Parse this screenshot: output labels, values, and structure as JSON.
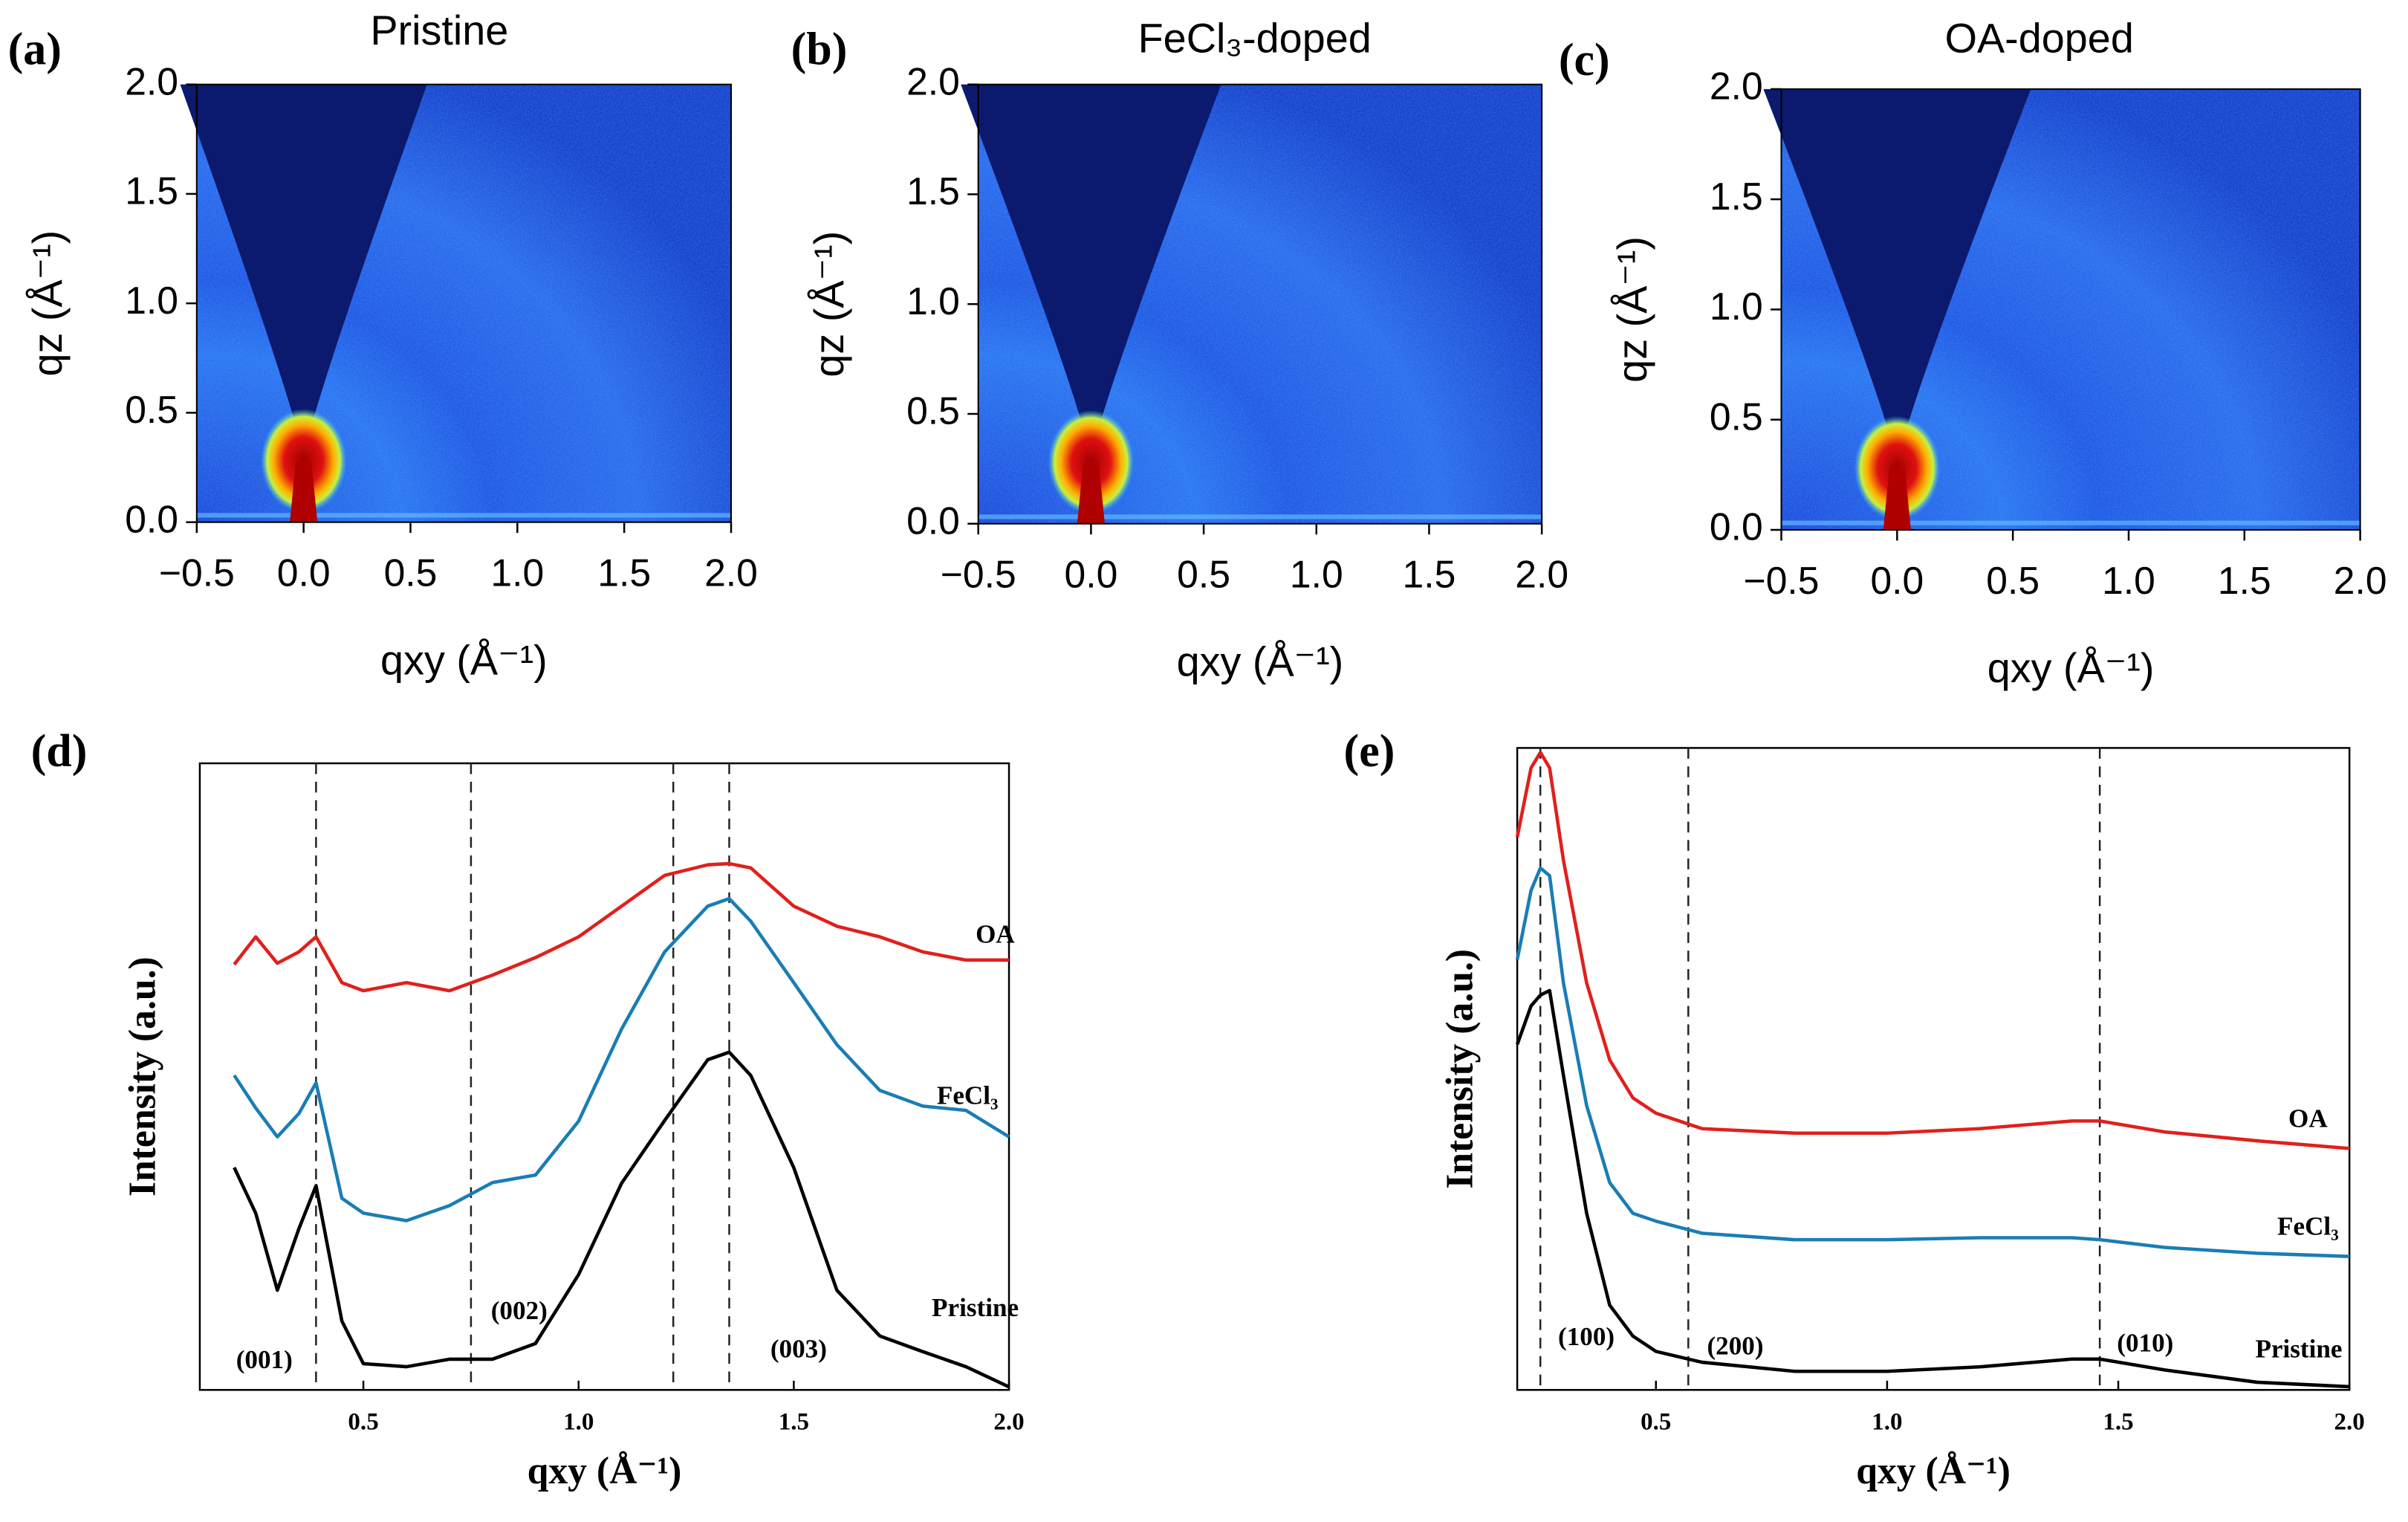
{
  "chart_data": [
    {
      "type": "image",
      "panel_label": "(a)",
      "title": "Pristine",
      "x_label": "qxy (Å⁻¹)",
      "y_label": "qz (Å⁻¹)",
      "xlim": [
        -0.5,
        2.0
      ],
      "ylim": [
        0,
        2.0
      ],
      "xticks": [
        {
          "value": -0.5,
          "label": "−0.5"
        },
        {
          "value": 0,
          "label": "0.0"
        },
        {
          "value": 0.5,
          "label": "0.5"
        },
        {
          "value": 1.0,
          "label": "1.0"
        },
        {
          "value": 1.5,
          "label": "1.5"
        },
        {
          "value": 2.0,
          "label": "2.0"
        }
      ],
      "yticks": [
        {
          "value": 0,
          "label": "0.0"
        },
        {
          "value": 0.5,
          "label": "0.5"
        },
        {
          "value": 1.0,
          "label": "1.0"
        },
        {
          "value": 1.5,
          "label": "1.5"
        },
        {
          "value": 2.0,
          "label": "2.0"
        }
      ]
    },
    {
      "type": "image",
      "panel_label": "(b)",
      "title": "FeCl₃-doped",
      "x_label": "qxy (Å⁻¹)",
      "y_label": "qz (Å⁻¹)",
      "xlim": [
        -0.5,
        2.0
      ],
      "ylim": [
        0,
        2.0
      ],
      "xticks": [
        {
          "value": -0.5,
          "label": "−0.5"
        },
        {
          "value": 0,
          "label": "0.0"
        },
        {
          "value": 0.5,
          "label": "0.5"
        },
        {
          "value": 1.0,
          "label": "1.0"
        },
        {
          "value": 1.5,
          "label": "1.5"
        },
        {
          "value": 2.0,
          "label": "2.0"
        }
      ],
      "yticks": [
        {
          "value": 0,
          "label": "0.0"
        },
        {
          "value": 0.5,
          "label": "0.5"
        },
        {
          "value": 1.0,
          "label": "1.0"
        },
        {
          "value": 1.5,
          "label": "1.5"
        },
        {
          "value": 2.0,
          "label": "2.0"
        }
      ]
    },
    {
      "type": "image",
      "panel_label": "(c)",
      "title": "OA-doped",
      "x_label": "qxy (Å⁻¹)",
      "y_label": "qz (Å⁻¹)",
      "xlim": [
        -0.5,
        2.0
      ],
      "ylim": [
        0,
        2.0
      ],
      "xticks": [
        {
          "value": -0.5,
          "label": "−0.5"
        },
        {
          "value": 0,
          "label": "0.0"
        },
        {
          "value": 0.5,
          "label": "0.5"
        },
        {
          "value": 1.0,
          "label": "1.0"
        },
        {
          "value": 1.5,
          "label": "1.5"
        },
        {
          "value": 2.0,
          "label": "2.0"
        }
      ],
      "yticks": [
        {
          "value": 0,
          "label": "0.0"
        },
        {
          "value": 0.5,
          "label": "0.5"
        },
        {
          "value": 1.0,
          "label": "1.0"
        },
        {
          "value": 1.5,
          "label": "1.5"
        },
        {
          "value": 2.0,
          "label": "2.0"
        }
      ]
    },
    {
      "type": "line",
      "panel_label": "(d)",
      "x_label": "qxy (Å⁻¹)",
      "y_label": "Intensity (a.u.)",
      "xlim": [
        0.12,
        2.0
      ],
      "ylim": [
        0,
        10
      ],
      "xticks": [
        0.5,
        {
          "value": 1.0,
          "label": "1.0"
        },
        1.5,
        {
          "value": 2.0,
          "label": "2.0"
        }
      ],
      "x": [
        0.2,
        0.25,
        0.3,
        0.35,
        0.39,
        0.45,
        0.5,
        0.6,
        0.7,
        0.8,
        0.9,
        1.0,
        1.1,
        1.2,
        1.3,
        1.35,
        1.4,
        1.5,
        1.6,
        1.7,
        1.8,
        1.9,
        2.0
      ],
      "series": [
        {
          "name": "OA",
          "color": "#e0201c",
          "values": [
            6.79,
            7.23,
            6.81,
            6.99,
            7.23,
            6.5,
            6.37,
            6.5,
            6.37,
            6.62,
            6.9,
            7.23,
            7.72,
            8.21,
            8.38,
            8.4,
            8.33,
            7.72,
            7.4,
            7.23,
            6.99,
            6.86,
            6.86
          ]
        },
        {
          "name": "FeCl₃",
          "color": "#1a7db5",
          "values": [
            5.02,
            4.5,
            4.04,
            4.41,
            4.9,
            3.06,
            2.82,
            2.7,
            2.94,
            3.31,
            3.43,
            4.29,
            5.76,
            6.99,
            7.72,
            7.84,
            7.48,
            6.5,
            5.51,
            4.78,
            4.53,
            4.46,
            4.04
          ]
        },
        {
          "name": "Pristine",
          "color": "#000000",
          "values": [
            3.55,
            2.82,
            1.59,
            2.57,
            3.26,
            1.1,
            0.42,
            0.37,
            0.49,
            0.49,
            0.74,
            1.84,
            3.3,
            4.3,
            5.27,
            5.39,
            5.02,
            3.55,
            1.59,
            0.86,
            0.61,
            0.37,
            0.05
          ]
        }
      ],
      "vlines": [
        0.39,
        0.75,
        1.22,
        1.35
      ],
      "annotations": [
        "(001)",
        "(002)",
        "(003)"
      ]
    },
    {
      "type": "line",
      "panel_label": "(e)",
      "x_label": "qxy (Å⁻¹)",
      "y_label": "Intensity (a.u.)",
      "xlim": [
        0.2,
        2.0
      ],
      "ylim": [
        0,
        10
      ],
      "xticks": [
        0.5,
        {
          "value": 1.0,
          "label": "1.0"
        },
        1.5,
        {
          "value": 2.0,
          "label": "2.0"
        }
      ],
      "x": [
        0.2,
        0.23,
        0.25,
        0.27,
        0.3,
        0.35,
        0.4,
        0.45,
        0.5,
        0.6,
        0.8,
        1.0,
        1.2,
        1.4,
        1.46,
        1.6,
        1.8,
        2.0
      ],
      "series": [
        {
          "name": "OA",
          "color": "#e0201c",
          "values": [
            8.61,
            9.69,
            9.93,
            9.69,
            8.25,
            6.34,
            5.14,
            4.55,
            4.31,
            4.07,
            4.0,
            4.0,
            4.07,
            4.19,
            4.19,
            4.02,
            3.88,
            3.76
          ]
        },
        {
          "name": "FeCl₃",
          "color": "#1a7db5",
          "values": [
            6.7,
            7.78,
            8.13,
            8.01,
            6.34,
            4.43,
            3.23,
            2.75,
            2.63,
            2.44,
            2.34,
            2.34,
            2.37,
            2.37,
            2.34,
            2.22,
            2.13,
            2.08
          ]
        },
        {
          "name": "Pristine",
          "color": "#000000",
          "values": [
            5.38,
            5.98,
            6.15,
            6.22,
            4.9,
            2.75,
            1.32,
            0.84,
            0.6,
            0.43,
            0.29,
            0.29,
            0.36,
            0.48,
            0.48,
            0.31,
            0.12,
            0.05
          ]
        }
      ],
      "vlines": [
        0.25,
        0.57,
        1.46
      ],
      "annotations": [
        "(100)",
        "(200)",
        "(010)"
      ]
    }
  ]
}
